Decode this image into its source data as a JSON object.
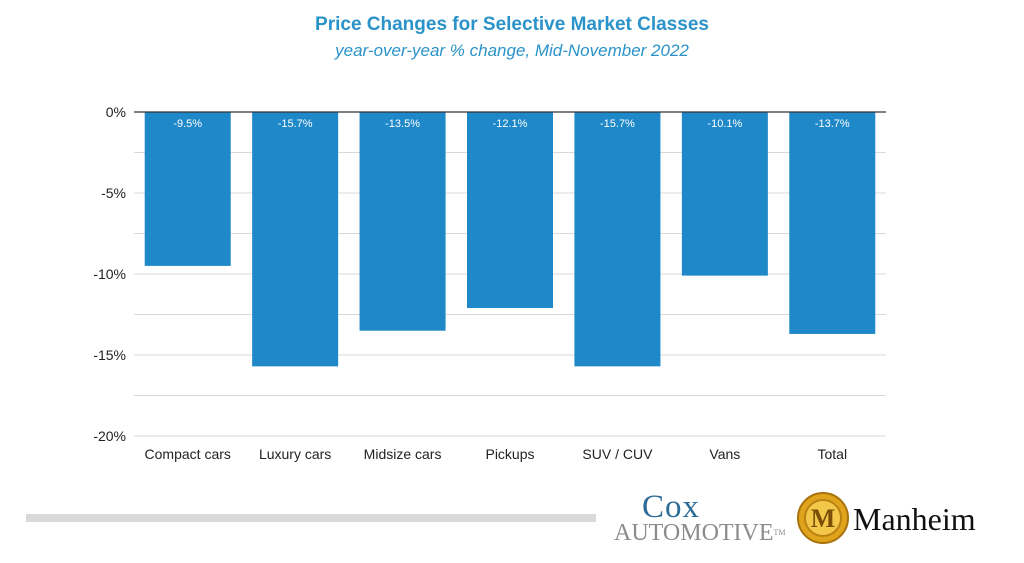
{
  "chart_data": {
    "type": "bar",
    "title": "Price Changes for Selective Market Classes",
    "subtitle": "year-over-year % change, Mid-November 2022",
    "categories": [
      "Compact cars",
      "Luxury cars",
      "Midsize cars",
      "Pickups",
      "SUV / CUV",
      "Vans",
      "Total"
    ],
    "values": [
      -9.5,
      -15.7,
      -13.5,
      -12.1,
      -15.7,
      -10.1,
      -13.7
    ],
    "data_labels": [
      "-9.5%",
      "-15.7%",
      "-13.5%",
      "-12.1%",
      "-15.7%",
      "-10.1%",
      "-13.7%"
    ],
    "yticks": [
      0,
      -5,
      -10,
      -15,
      -20
    ],
    "ytick_labels": [
      "0%",
      "-5%",
      "-10%",
      "-15%",
      "-20%"
    ],
    "ylim": [
      -20,
      0
    ],
    "xlabel": "",
    "ylabel": "",
    "grid": true,
    "colors": {
      "bar": "#1f88c9",
      "title": "#2a93c9",
      "grid": "#d9d9d9",
      "axis": "#333333",
      "data_label": "#ffffff",
      "tick_label": "#222222"
    }
  },
  "branding": {
    "cox_top": "Cox",
    "cox_bottom": "Automotive",
    "cox_tm": "TM",
    "manheim": "Manheim",
    "manheim_emblem_letter": "M"
  }
}
